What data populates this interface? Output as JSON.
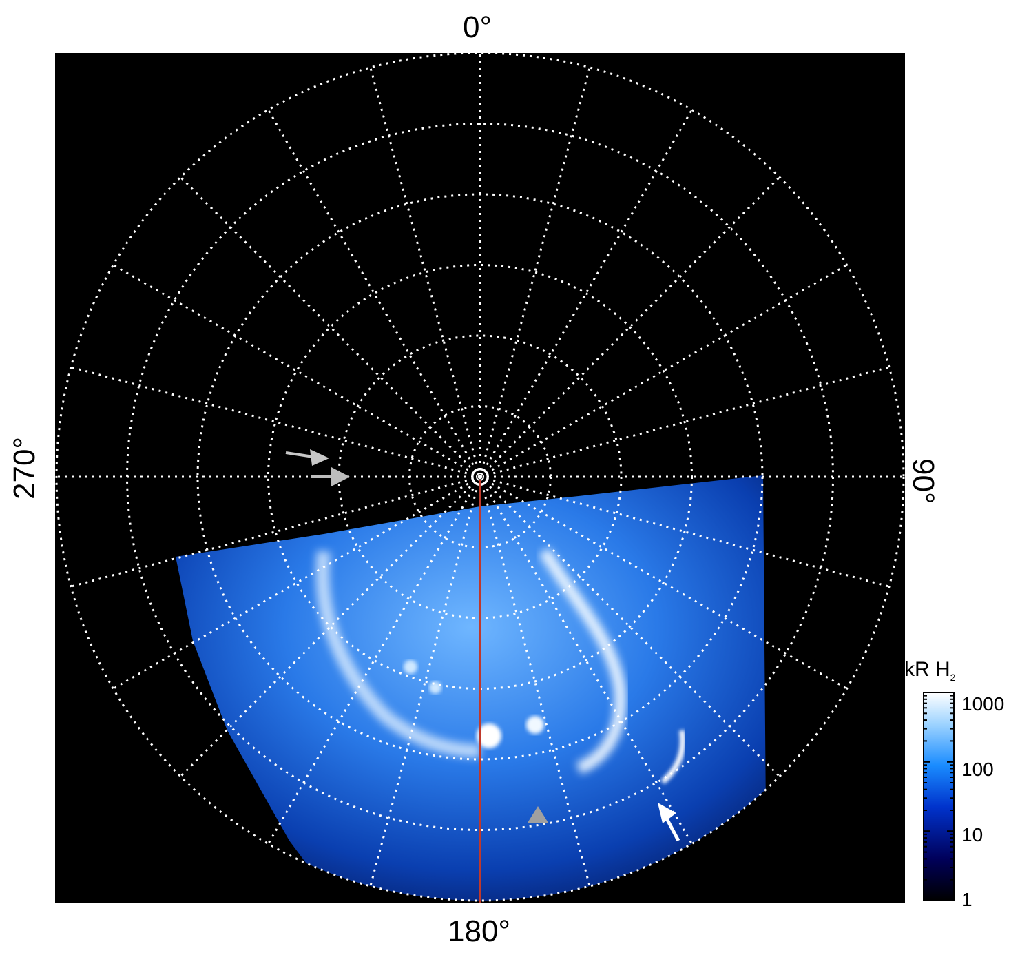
{
  "chart_data": {
    "type": "heatmap",
    "projection": "polar (north-up azimuthal view of auroral emission)",
    "background_color": "#000000",
    "grid": true,
    "grid_style": "white dotted",
    "longitude_labels": {
      "top": "0°",
      "right": "90°",
      "bottom": "180°",
      "left": "270°"
    },
    "longitude_grid_step_deg": 15,
    "latitude_rings": 6,
    "colorbar": {
      "title_main": "kR H",
      "title_sub": "2",
      "scale": "log",
      "range": [
        1,
        1000
      ],
      "ticks": [
        "1000",
        "100",
        "10",
        "1"
      ],
      "colormap": [
        "#000000",
        "#00005a",
        "#0033cc",
        "#1a8cff",
        "#9fd4ff",
        "#ffffff"
      ]
    },
    "central_line_color": "#c0392b",
    "markers": [
      {
        "kind": "arrow",
        "color": "#c8c8c8"
      },
      {
        "kind": "arrow",
        "color": "#bdbdbd"
      },
      {
        "kind": "triangle",
        "color": "#a0a0a0"
      },
      {
        "kind": "arrow",
        "color": "#ffffff"
      }
    ]
  }
}
